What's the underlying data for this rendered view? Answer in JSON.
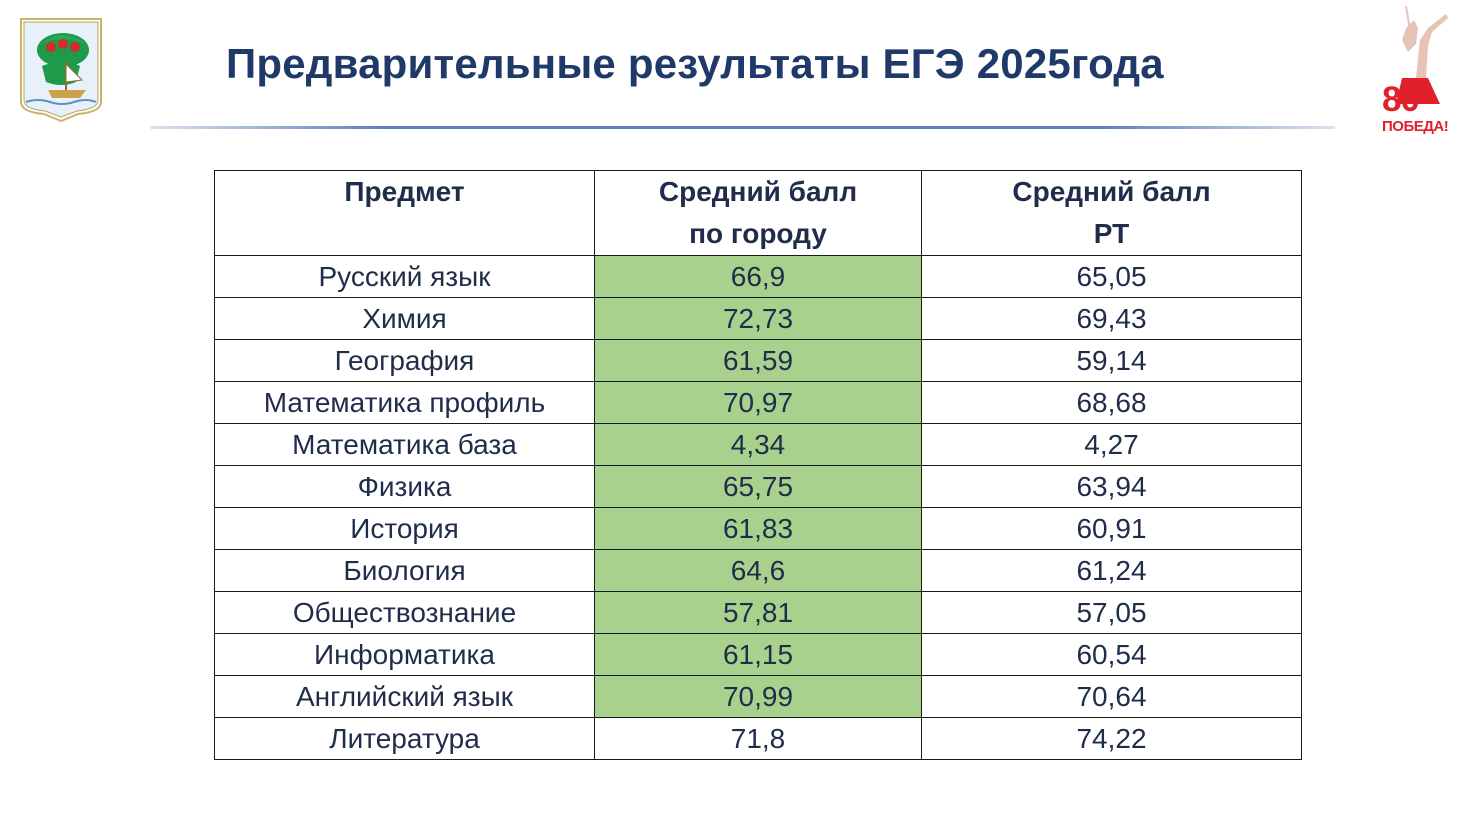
{
  "header": {
    "title": "Предварительные результаты ЕГЭ 2025года"
  },
  "badge": {
    "number": "80",
    "word": "ПОБЕДА!"
  },
  "colors": {
    "title": "#1f3a68",
    "text": "#1f2d4a",
    "highlight": "#a9d18e",
    "badge_red": "#e0202a",
    "rule": "#5d7fb8"
  },
  "icons": [
    "city-coat-of-arms-icon",
    "victory-80-badge-icon"
  ],
  "table": {
    "columns": [
      "Предмет",
      "Средний балл по городу",
      "Средний балл РТ"
    ],
    "column_lines": [
      [
        "Предмет"
      ],
      [
        "Средний балл",
        "по городу"
      ],
      [
        "Средний балл",
        "РТ"
      ]
    ],
    "rows": [
      {
        "subject": "Русский язык",
        "city": "66,9",
        "rt": "65,05",
        "highlight": true
      },
      {
        "subject": "Химия",
        "city": "72,73",
        "rt": "69,43",
        "highlight": true
      },
      {
        "subject": "География",
        "city": "61,59",
        "rt": "59,14",
        "highlight": true
      },
      {
        "subject": "Математика профиль",
        "city": "70,97",
        "rt": "68,68",
        "highlight": true
      },
      {
        "subject": "Математика база",
        "city": "4,34",
        "rt": "4,27",
        "highlight": true
      },
      {
        "subject": "Физика",
        "city": "65,75",
        "rt": "63,94",
        "highlight": true
      },
      {
        "subject": "История",
        "city": "61,83",
        "rt": "60,91",
        "highlight": true
      },
      {
        "subject": "Биология",
        "city": "64,6",
        "rt": "61,24",
        "highlight": true
      },
      {
        "subject": "Обществознание",
        "city": "57,81",
        "rt": "57,05",
        "highlight": true
      },
      {
        "subject": "Информатика",
        "city": "61,15",
        "rt": "60,54",
        "highlight": true
      },
      {
        "subject": "Английский язык",
        "city": "70,99",
        "rt": "70,64",
        "highlight": true
      },
      {
        "subject": "Литература",
        "city": "71,8",
        "rt": "74,22",
        "highlight": false
      }
    ]
  }
}
